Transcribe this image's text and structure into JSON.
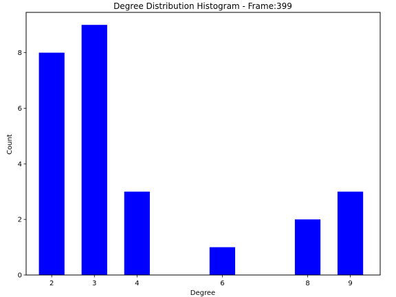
{
  "chart_data": {
    "type": "bar",
    "title": "Degree Distribution Histogram - Frame:399",
    "xlabel": "Degree",
    "ylabel": "Count",
    "x": [
      2,
      3,
      4,
      6,
      8,
      9
    ],
    "values": [
      8,
      9,
      3,
      1,
      2,
      3
    ],
    "xlim": [
      1.4,
      9.7
    ],
    "ylim": [
      0,
      9.45
    ],
    "xticks": [
      2,
      3,
      4,
      6,
      8,
      9
    ],
    "yticks": [
      0,
      2,
      4,
      6,
      8
    ],
    "bar_width": 0.6,
    "bar_color": "#0000ff",
    "grid": false,
    "legend": "none"
  }
}
